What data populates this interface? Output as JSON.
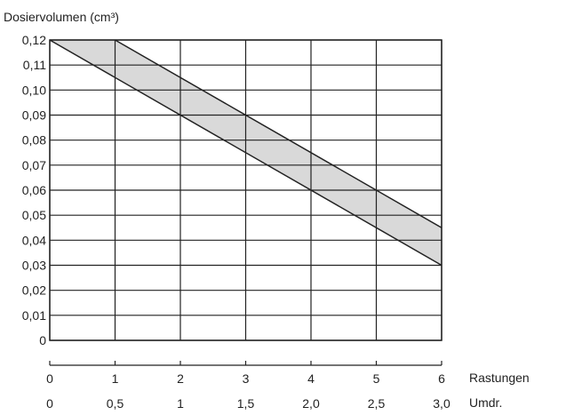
{
  "chart_data": {
    "type": "area",
    "title": "",
    "ylabel": "Dosiervolumen (cm³)",
    "xlabel": "Rastungen",
    "x2label": "Umdr.",
    "xlim": [
      0,
      6
    ],
    "ylim": [
      0,
      0.12
    ],
    "grid": true,
    "y_ticks": [
      0,
      0.01,
      0.02,
      0.03,
      0.04,
      0.05,
      0.06,
      0.07,
      0.08,
      0.09,
      0.1,
      0.11,
      0.12
    ],
    "y_tick_labels": [
      "0",
      "0,01",
      "0,02",
      "0,03",
      "0,04",
      "0,05",
      "0,06",
      "0,07",
      "0,08",
      "0,09",
      "0,10",
      "0,11",
      "0,12"
    ],
    "x_ticks": [
      0,
      1,
      2,
      3,
      4,
      5,
      6
    ],
    "x_tick_labels": [
      "0",
      "1",
      "2",
      "3",
      "4",
      "5",
      "6"
    ],
    "x2_tick_labels": [
      "0",
      "0,5",
      "1",
      "1,5",
      "2,0",
      "2,5",
      "3,0"
    ],
    "series": [
      {
        "name": "",
        "x": [
          1,
          6
        ],
        "y": [
          0.12,
          0.045
        ]
      },
      {
        "name": "",
        "x": [
          0,
          6
        ],
        "y": [
          0.12,
          0.03
        ]
      }
    ],
    "fill_between": {
      "color": "#d9d9d9",
      "polygon": [
        [
          0,
          0.12
        ],
        [
          1,
          0.12
        ],
        [
          6,
          0.045
        ],
        [
          6,
          0.03
        ]
      ]
    },
    "colors": {
      "line": "#222222",
      "grid": "#222222",
      "band": "#d9d9d9"
    }
  }
}
